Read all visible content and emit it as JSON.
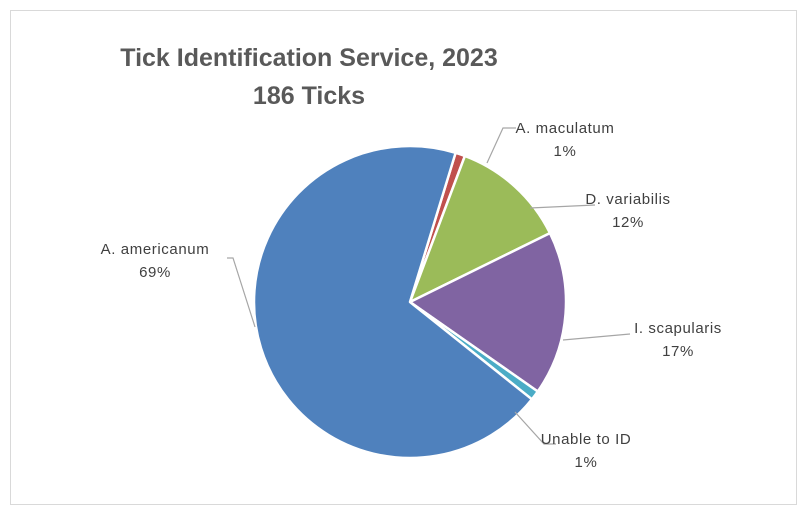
{
  "chart_data": {
    "type": "pie",
    "title": "Tick Identification Service, 2023",
    "subtitle": "186 Ticks",
    "legend": "none",
    "series": [
      {
        "categories": [
          "A. maculatum",
          "D. variabilis",
          "I. scapularis",
          "Unable to ID",
          "A. americanum"
        ],
        "values": [
          1,
          12,
          17,
          1,
          69
        ],
        "labels": [
          "1%",
          "12%",
          "17%",
          "1%",
          "69%"
        ]
      }
    ],
    "colors": [
      "#C0504D",
      "#9BBB59",
      "#8064A2",
      "#4BACC6",
      "#4F81BD"
    ],
    "leader_color": "#A6A6A6"
  }
}
